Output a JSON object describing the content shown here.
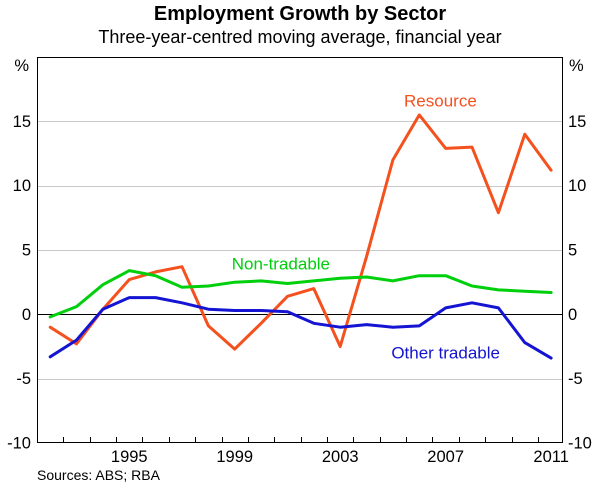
{
  "page": {
    "title": "Employment Growth by Sector",
    "subtitle": "Three-year-centred moving average, financial year",
    "source_note": "Sources: ABS; RBA"
  },
  "chart_data": {
    "type": "line",
    "title": "Employment Growth by Sector",
    "subtitle": "Three-year-centred moving average, financial year",
    "xlabel": "",
    "ylabel": "%",
    "unit_left": "%",
    "unit_right": "%",
    "x": [
      1992,
      1993,
      1994,
      1995,
      1996,
      1997,
      1998,
      1999,
      2000,
      2001,
      2002,
      2003,
      2004,
      2005,
      2006,
      2007,
      2008,
      2009,
      2010,
      2011
    ],
    "xlim": [
      1991.5,
      2011.45
    ],
    "ylim": [
      -10,
      20
    ],
    "yticks": [
      15,
      10,
      5,
      0,
      -5,
      -10
    ],
    "xtick_label_years": [
      1995,
      1999,
      2003,
      2007,
      2011
    ],
    "minor_ticks": {
      "start": 1992.5,
      "end": 2010.5,
      "step": 1
    },
    "grid": "horizontal",
    "legend_position": "inline-labels",
    "series": [
      {
        "name": "Resource",
        "color": "#F4511E",
        "values": [
          -1.0,
          -2.3,
          0.4,
          2.7,
          3.3,
          3.7,
          -0.9,
          -2.7,
          -0.7,
          1.4,
          2.0,
          -2.5,
          4.5,
          12.0,
          15.5,
          12.9,
          13.0,
          7.9,
          14.0,
          11.2
        ]
      },
      {
        "name": "Non-tradable",
        "color": "#00CF0C",
        "values": [
          -0.2,
          0.6,
          2.3,
          3.4,
          3.0,
          2.1,
          2.2,
          2.5,
          2.6,
          2.4,
          2.6,
          2.8,
          2.9,
          2.6,
          3.0,
          3.0,
          2.2,
          1.9,
          1.8,
          1.7
        ]
      },
      {
        "name": "Other tradable",
        "color": "#1414D2",
        "values": [
          -3.3,
          -2.0,
          0.4,
          1.3,
          1.3,
          0.9,
          0.4,
          0.3,
          0.3,
          0.2,
          -0.7,
          -1.0,
          -0.8,
          -1.0,
          -0.9,
          0.5,
          0.9,
          0.5,
          -2.2,
          -3.4
        ]
      }
    ],
    "annotations": [
      {
        "text": "Resource",
        "year": 2006.8,
        "value": 16.6,
        "color": "#F4511E"
      },
      {
        "text": "Non-tradable",
        "year": 2000.75,
        "value": 3.95,
        "color": "#00CF0C"
      },
      {
        "text": "Other tradable",
        "year": 2007.0,
        "value": -2.95,
        "color": "#1414D2"
      }
    ],
    "colors": {
      "grid": "#C9C9C9",
      "axis": "#000000"
    },
    "source": "Sources: ABS; RBA"
  }
}
